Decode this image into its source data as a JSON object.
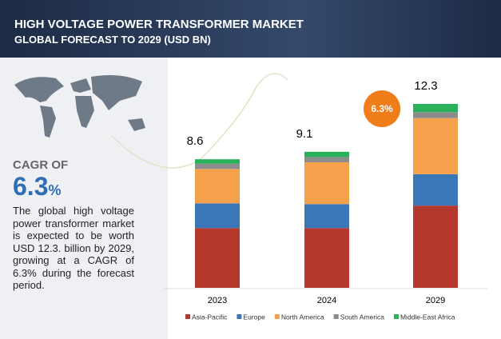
{
  "header": {
    "title": "HIGH VOLTAGE POWER TRANSFORMER MARKET",
    "subtitle": "GLOBAL FORECAST TO 2029 (USD BN)"
  },
  "sidebar": {
    "cagr_label": "CAGR OF",
    "cagr_value": "6.3",
    "cagr_unit": "%",
    "description": "The global high voltage power transformer market is expected to be worth USD 12.3. billion by 2029, growing at a CAGR of 6.3% during the forecast period."
  },
  "chart_data": {
    "type": "stacked_bar",
    "categories": [
      "2023",
      "2024",
      "2029"
    ],
    "series": [
      {
        "name": "Asia-Pacific",
        "color": "#b5382f",
        "values": [
          4.0,
          4.0,
          5.5
        ]
      },
      {
        "name": "Europe",
        "color": "#3a76b8",
        "values": [
          1.65,
          1.6,
          2.1
        ]
      },
      {
        "name": "North America",
        "color": "#f5a04a",
        "values": [
          2.3,
          2.8,
          3.75
        ]
      },
      {
        "name": "South America",
        "color": "#8c8c8c",
        "values": [
          0.35,
          0.35,
          0.4
        ]
      },
      {
        "name": "Middle-East Africa",
        "color": "#2bb15a",
        "values": [
          0.3,
          0.35,
          0.55
        ]
      }
    ],
    "totals": [
      8.6,
      9.1,
      12.3
    ],
    "annotation": "6.3%",
    "legend": "bottom"
  }
}
